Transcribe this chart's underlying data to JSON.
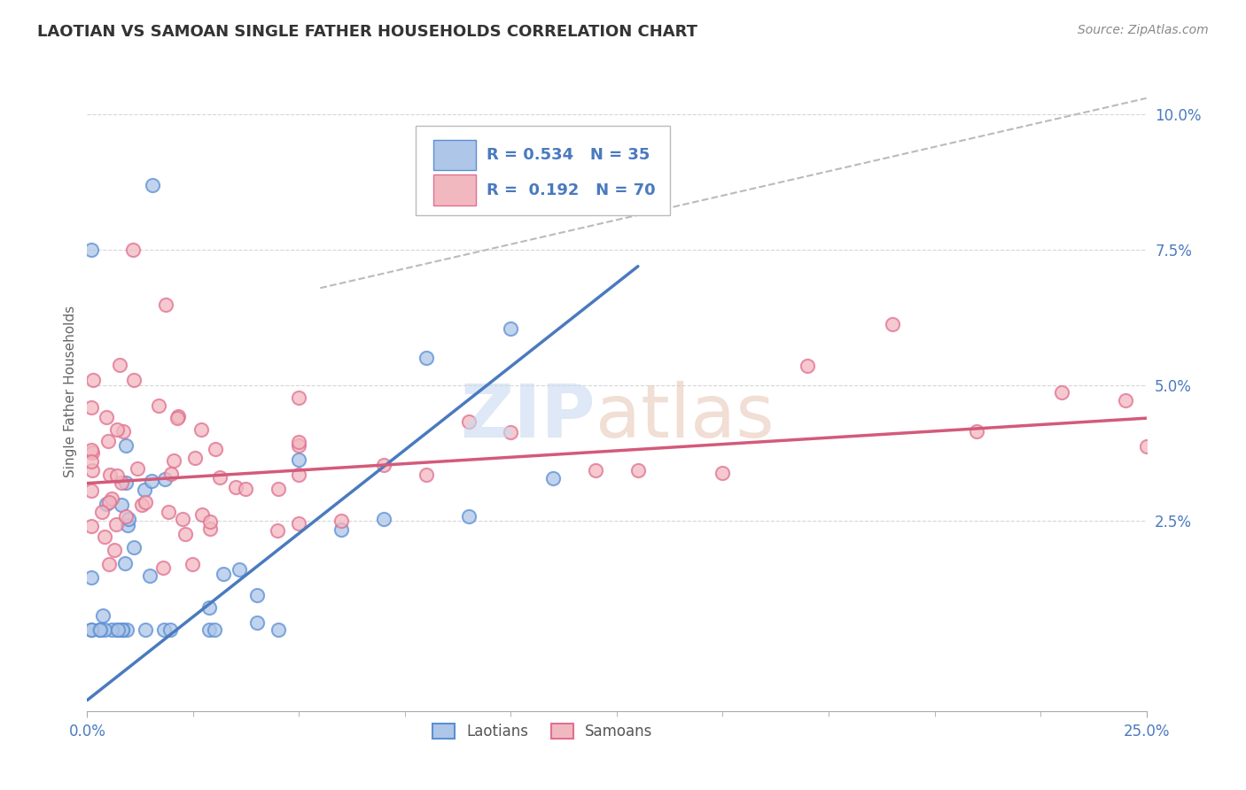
{
  "title": "LAOTIAN VS SAMOAN SINGLE FATHER HOUSEHOLDS CORRELATION CHART",
  "source": "Source: ZipAtlas.com",
  "ylabel": "Single Father Households",
  "xlim": [
    0.0,
    0.25
  ],
  "ylim": [
    -0.01,
    0.108
  ],
  "legend1_r": "0.534",
  "legend1_n": "35",
  "legend2_r": "0.192",
  "legend2_n": "70",
  "blue_scatter_face": "#aec6e8",
  "blue_scatter_edge": "#5b8fd4",
  "pink_scatter_face": "#f2b8c0",
  "pink_scatter_edge": "#e07090",
  "blue_line_color": "#4a7abf",
  "pink_line_color": "#d45a7a",
  "ref_line_color": "#bbbbbb",
  "grid_color": "#cccccc",
  "axis_label_color": "#4a7abf",
  "title_color": "#333333",
  "source_color": "#888888",
  "watermark_zip_color": "#c8daf0",
  "watermark_atlas_color": "#e8c8b8",
  "lao_line_x0": 0.0,
  "lao_line_y0": -0.008,
  "lao_line_x1": 0.13,
  "lao_line_y1": 0.072,
  "sam_line_x0": 0.0,
  "sam_line_y0": 0.032,
  "sam_line_x1": 0.25,
  "sam_line_y1": 0.044,
  "ref_line_x0": 0.055,
  "ref_line_y0": 0.068,
  "ref_line_x1": 0.25,
  "ref_line_y1": 0.103
}
